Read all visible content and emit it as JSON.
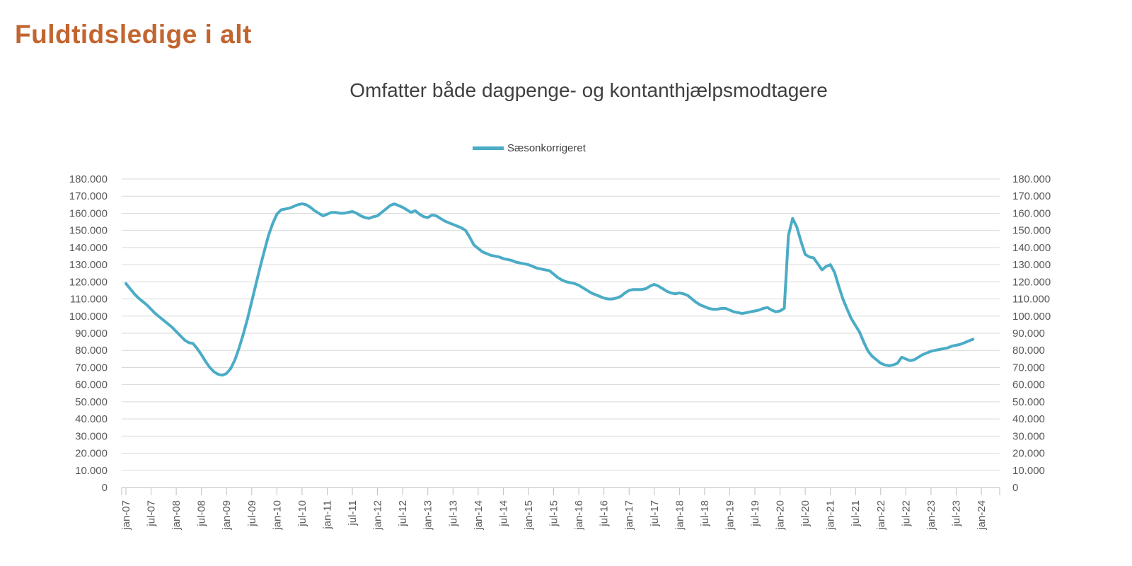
{
  "page": {
    "title": "Fuldtidsledige i alt"
  },
  "colors": {
    "title": "#C2652F",
    "line": "#4BACC6",
    "grid": "#D9D9D9",
    "axis": "#BFBFBF",
    "tick_text": "#595959",
    "subtitle_text": "#404040"
  },
  "chart_data": {
    "type": "line",
    "title": "Omfatter både dagpenge- og kontanthjælpsmodtagere",
    "legend_position": "top",
    "grid": true,
    "ylim": [
      0,
      180000
    ],
    "y_step": 10000,
    "y_tick_labels": [
      "0",
      "10.000",
      "20.000",
      "30.000",
      "40.000",
      "50.000",
      "60.000",
      "70.000",
      "80.000",
      "90.000",
      "100.000",
      "110.000",
      "120.000",
      "130.000",
      "140.000",
      "150.000",
      "160.000",
      "170.000",
      "180.000"
    ],
    "x_tick_labels": [
      "jan-07",
      "jul-07",
      "jan-08",
      "jul-08",
      "jan-09",
      "jul-09",
      "jan-10",
      "jul-10",
      "jan-11",
      "jul-11",
      "jan-12",
      "jul-12",
      "jan-13",
      "jul-13",
      "jan-14",
      "jul-14",
      "jan-15",
      "jul-15",
      "jan-16",
      "jul-16",
      "jan-17",
      "jul-17",
      "jan-18",
      "jul-18",
      "jan-19",
      "jul-19",
      "jan-20",
      "jul-20",
      "jan-21",
      "jul-21",
      "jan-22",
      "jul-22",
      "jan-23",
      "jul-23",
      "jan-24"
    ],
    "series": [
      {
        "name": "Sæsonkorrigeret",
        "color": "#4BACC6",
        "frequency": "monthly",
        "start": "jan-07",
        "end": "nov-23",
        "values": [
          119000,
          116000,
          113000,
          110500,
          108500,
          106500,
          104000,
          101500,
          99500,
          97500,
          95500,
          93500,
          91000,
          88500,
          86000,
          84500,
          84000,
          81000,
          77500,
          73500,
          70000,
          67500,
          66000,
          65500,
          66500,
          69500,
          74500,
          81500,
          89500,
          98500,
          108500,
          118500,
          128500,
          138000,
          147000,
          154000,
          159500,
          162000,
          162500,
          163000,
          164000,
          165000,
          165500,
          165000,
          163500,
          161500,
          160000,
          158500,
          159500,
          160500,
          160500,
          160000,
          160000,
          160500,
          161000,
          160000,
          158500,
          157500,
          157000,
          158000,
          158500,
          160500,
          162500,
          164500,
          165500,
          164500,
          163500,
          162000,
          160500,
          161500,
          159500,
          158000,
          157500,
          159000,
          158500,
          157000,
          155500,
          154500,
          153500,
          152500,
          151500,
          150000,
          146000,
          141500,
          139500,
          137500,
          136500,
          135500,
          135000,
          134500,
          133500,
          133000,
          132500,
          131500,
          131000,
          130500,
          130000,
          129000,
          128000,
          127500,
          127000,
          126500,
          124500,
          122500,
          121000,
          120000,
          119500,
          119000,
          118000,
          116500,
          115000,
          113500,
          112500,
          111500,
          110500,
          110000,
          110000,
          110500,
          111500,
          113500,
          115000,
          115500,
          115500,
          115500,
          116000,
          117500,
          118500,
          117500,
          116000,
          114500,
          113500,
          113000,
          113500,
          113000,
          112000,
          110000,
          108000,
          106500,
          105500,
          104500,
          104000,
          104000,
          104500,
          104500,
          103500,
          102500,
          102000,
          101500,
          102000,
          102500,
          103000,
          103500,
          104500,
          105000,
          103500,
          102500,
          103000,
          104500,
          147000,
          157000,
          152000,
          143500,
          136000,
          134500,
          134000,
          130500,
          127000,
          129000,
          130000,
          125500,
          117500,
          110000,
          104000,
          98500,
          94500,
          90500,
          84500,
          79500,
          76500,
          74500,
          72500,
          71500,
          71000,
          71500,
          72500,
          76000,
          75000,
          74000,
          74500,
          76000,
          77500,
          78500,
          79500,
          80000,
          80500,
          81000,
          81500,
          82500,
          83000,
          83500,
          84500,
          85500,
          86500
        ]
      }
    ]
  }
}
